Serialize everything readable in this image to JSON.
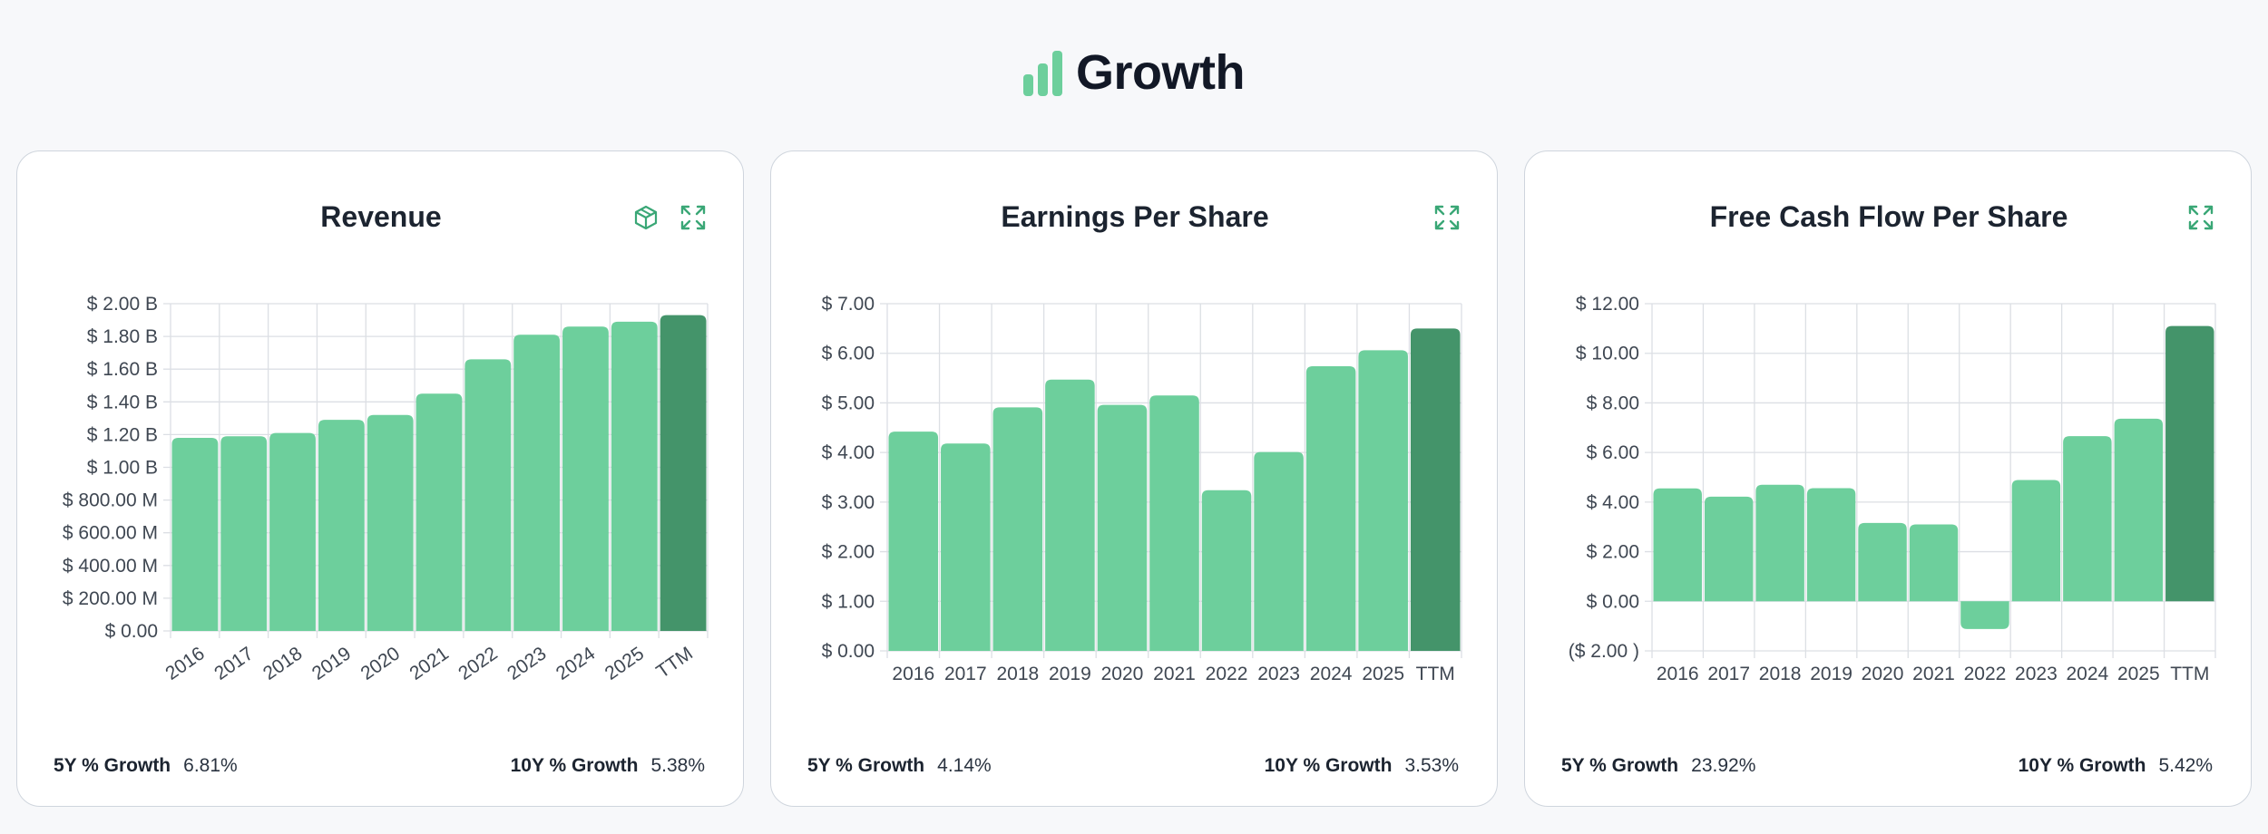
{
  "header": {
    "title": "Growth",
    "icon": "bar-chart-icon"
  },
  "colors": {
    "bar": "#6dcf9c",
    "bar_highlight": "#44946a",
    "accent": "#3aa776",
    "grid": "#dcdfe4"
  },
  "cards": [
    {
      "title": "Revenue",
      "icons": [
        "cube-icon",
        "expand-icon"
      ],
      "growth_5y_label": "5Y % Growth",
      "growth_5y_value": "6.81%",
      "growth_10y_label": "10Y % Growth",
      "growth_10y_value": "5.38%"
    },
    {
      "title": "Earnings Per Share",
      "icons": [
        "expand-icon"
      ],
      "growth_5y_label": "5Y % Growth",
      "growth_5y_value": "4.14%",
      "growth_10y_label": "10Y % Growth",
      "growth_10y_value": "3.53%"
    },
    {
      "title": "Free Cash Flow Per Share",
      "icons": [
        "expand-icon"
      ],
      "growth_5y_label": "5Y % Growth",
      "growth_5y_value": "23.92%",
      "growth_10y_label": "10Y % Growth",
      "growth_10y_value": "5.42%"
    }
  ],
  "chart_data": [
    {
      "type": "bar",
      "title": "Revenue",
      "categories": [
        "2016",
        "2017",
        "2018",
        "2019",
        "2020",
        "2021",
        "2022",
        "2023",
        "2024",
        "2025",
        "TTM"
      ],
      "values": [
        1.18,
        1.19,
        1.21,
        1.29,
        1.32,
        1.45,
        1.66,
        1.81,
        1.86,
        1.89,
        1.93
      ],
      "unit": "B",
      "ylim": [
        0,
        2.0
      ],
      "yticks": [
        "$ 0.00",
        "$ 200.00 M",
        "$ 400.00 M",
        "$ 600.00 M",
        "$ 800.00 M",
        "$ 1.00 B",
        "$ 1.20 B",
        "$ 1.40 B",
        "$ 1.60 B",
        "$ 1.80 B",
        "$ 2.00 B"
      ],
      "highlight_last": true,
      "rotated_labels": true,
      "grid": true
    },
    {
      "type": "bar",
      "title": "Earnings Per Share",
      "categories": [
        "2016",
        "2017",
        "2018",
        "2019",
        "2020",
        "2021",
        "2022",
        "2023",
        "2024",
        "2025",
        "TTM"
      ],
      "values": [
        4.42,
        4.18,
        4.91,
        5.47,
        4.96,
        5.15,
        3.24,
        4.01,
        5.74,
        6.06,
        6.5
      ],
      "ylim": [
        0,
        7.0
      ],
      "yticks": [
        "$ 0.00",
        "$ 1.00",
        "$ 2.00",
        "$ 3.00",
        "$ 4.00",
        "$ 5.00",
        "$ 6.00",
        "$ 7.00"
      ],
      "highlight_last": true,
      "rotated_labels": false,
      "grid": true
    },
    {
      "type": "bar",
      "title": "Free Cash Flow Per Share",
      "categories": [
        "2016",
        "2017",
        "2018",
        "2019",
        "2020",
        "2021",
        "2022",
        "2023",
        "2024",
        "2025",
        "TTM"
      ],
      "values": [
        4.55,
        4.22,
        4.7,
        4.56,
        3.16,
        3.1,
        -1.12,
        4.89,
        6.66,
        7.36,
        11.1
      ],
      "ylim": [
        -2.0,
        12.0
      ],
      "yticks": [
        "($ 2.00 )",
        "$ 0.00",
        "$ 2.00",
        "$ 4.00",
        "$ 6.00",
        "$ 8.00",
        "$ 10.00",
        "$ 12.00"
      ],
      "highlight_last": true,
      "rotated_labels": false,
      "grid": true
    }
  ]
}
